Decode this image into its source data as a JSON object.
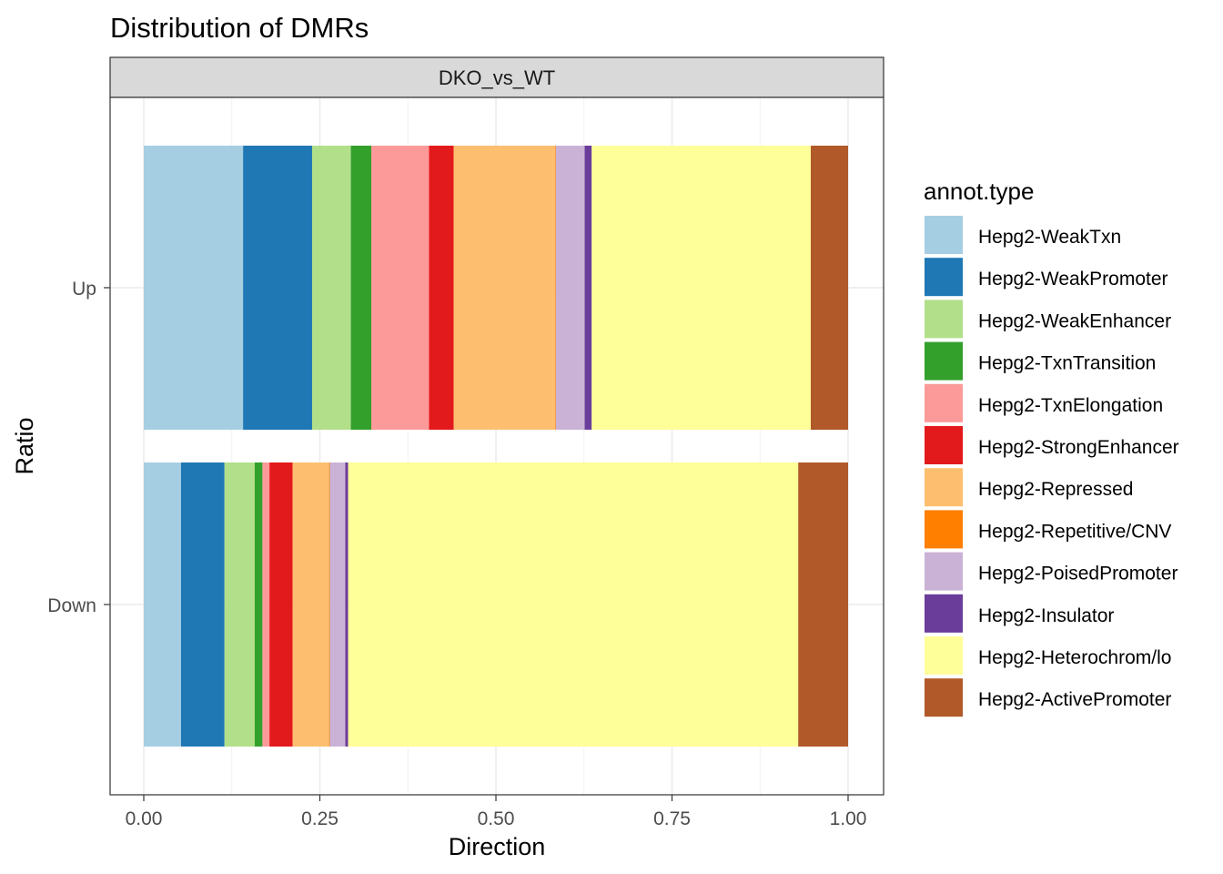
{
  "chart_data": {
    "type": "bar",
    "orientation": "horizontal",
    "stacked": "fill",
    "title": "Distribution of DMRs",
    "facet_label": "DKO_vs_WT",
    "xlabel": "Direction",
    "ylabel": "Ratio",
    "xlim": [
      0,
      1
    ],
    "x_ticks": [
      "0.00",
      "0.25",
      "0.50",
      "0.75",
      "1.00"
    ],
    "x_tick_values": [
      0,
      0.25,
      0.5,
      0.75,
      1
    ],
    "categories": [
      "Up",
      "Down"
    ],
    "grid": true,
    "legend_title": "annot.type",
    "legend_position": "right",
    "series": [
      {
        "name": "Hepg2-WeakTxn",
        "color": "#A6CEE3",
        "values": [
          0.141,
          0.053
        ]
      },
      {
        "name": "Hepg2-WeakPromoter",
        "color": "#1F78B4",
        "values": [
          0.098,
          0.062
        ]
      },
      {
        "name": "Hepg2-WeakEnhancer",
        "color": "#B2DF8A",
        "values": [
          0.055,
          0.043
        ]
      },
      {
        "name": "Hepg2-TxnTransition",
        "color": "#33A02C",
        "values": [
          0.029,
          0.011
        ]
      },
      {
        "name": "Hepg2-TxnElongation",
        "color": "#FB9A99",
        "values": [
          0.082,
          0.01
        ]
      },
      {
        "name": "Hepg2-StrongEnhancer",
        "color": "#E31A1C",
        "values": [
          0.035,
          0.033
        ]
      },
      {
        "name": "Hepg2-Repressed",
        "color": "#FDBF6F",
        "values": [
          0.144,
          0.052
        ]
      },
      {
        "name": "Hepg2-Repetitive/CNV",
        "color": "#FF7F00",
        "values": [
          0.001,
          0.001
        ]
      },
      {
        "name": "Hepg2-PoisedPromoter",
        "color": "#CAB2D6",
        "values": [
          0.041,
          0.022
        ]
      },
      {
        "name": "Hepg2-Insulator",
        "color": "#6A3D9A",
        "values": [
          0.01,
          0.004
        ]
      },
      {
        "name": "Hepg2-Heterochrom/lo",
        "color": "#FFFF99",
        "values": [
          0.311,
          0.641
        ]
      },
      {
        "name": "Hepg2-ActivePromoter",
        "color": "#B15928",
        "values": [
          0.053,
          0.071
        ]
      }
    ]
  }
}
